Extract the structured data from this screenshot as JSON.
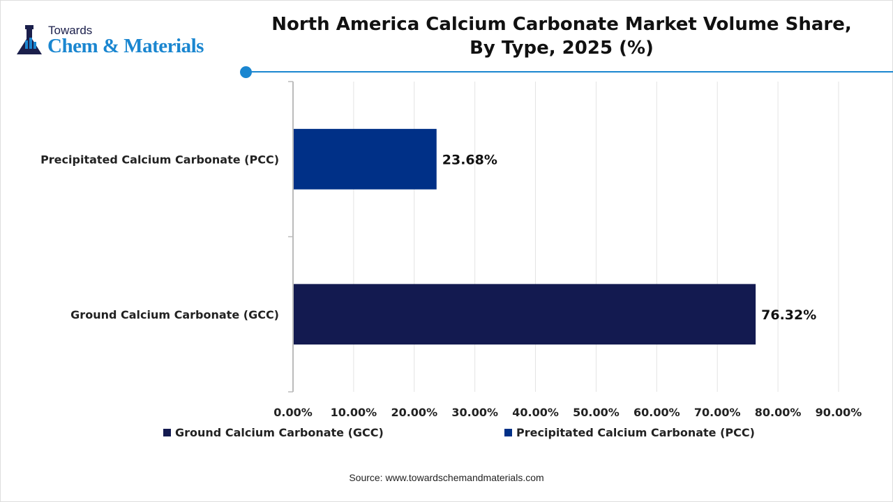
{
  "brand": {
    "line1": "Towards",
    "line2": "Chem & Materials"
  },
  "title_line1": "North America Calcium Carbonate Market Volume Share,",
  "title_line2": "By Type, 2025 (%)",
  "source": "Source: www.towardschemandmaterials.com",
  "colors": {
    "accent": "#1a86d0",
    "gcc": "#131a50",
    "pcc": "#003087"
  },
  "chart_data": {
    "type": "bar",
    "orientation": "horizontal",
    "categories": [
      "Precipitated Calcium Carbonate (PCC)",
      "Ground Calcium Carbonate (GCC)"
    ],
    "values": [
      23.68,
      76.32
    ],
    "data_labels": [
      "23.68%",
      "76.32%"
    ],
    "xlim": [
      0,
      90
    ],
    "xticks": [
      "0.00%",
      "10.00%",
      "20.00%",
      "30.00%",
      "40.00%",
      "50.00%",
      "60.00%",
      "70.00%",
      "80.00%",
      "90.00%"
    ],
    "grid": true,
    "legend": {
      "placement": "bottom",
      "entries": [
        "Ground Calcium Carbonate (GCC)",
        "Precipitated Calcium Carbonate (PCC)"
      ]
    }
  }
}
